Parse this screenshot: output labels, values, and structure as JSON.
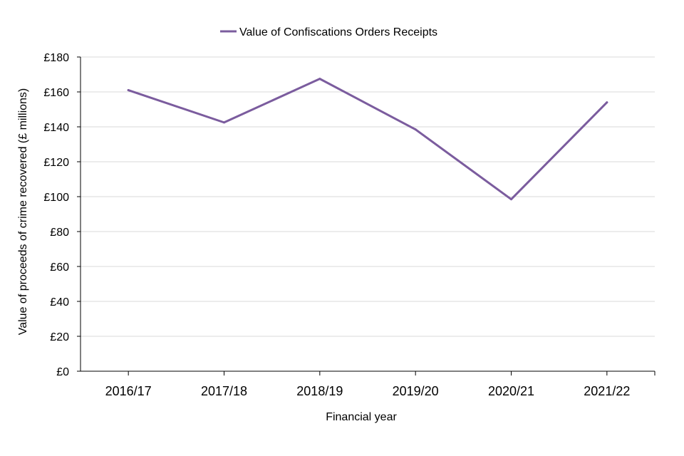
{
  "chart_data": {
    "type": "line",
    "categories": [
      "2016/17",
      "2017/18",
      "2018/19",
      "2019/20",
      "2020/21",
      "2021/22"
    ],
    "series": [
      {
        "name": "Value of Confiscations Orders  Receipts",
        "values": [
          161,
          142.5,
          167.5,
          138.5,
          98.5,
          154
        ],
        "color": "#7B5C9E"
      }
    ],
    "xlabel": "Financial year",
    "ylabel": "Value of proceeds of crime recovered  (£ millions)",
    "ylim": [
      0,
      180
    ],
    "yticks": [
      0,
      20,
      40,
      60,
      80,
      100,
      120,
      140,
      160,
      180
    ],
    "ytick_labels": [
      "£0",
      "£20",
      "£40",
      "£60",
      "£80",
      "£100",
      "£120",
      "£140",
      "£160",
      "£180"
    ],
    "grid": "horizontal",
    "legend_position": "top-center",
    "colors": {
      "gridline": "#D9D9D9",
      "axis": "#000000"
    }
  }
}
